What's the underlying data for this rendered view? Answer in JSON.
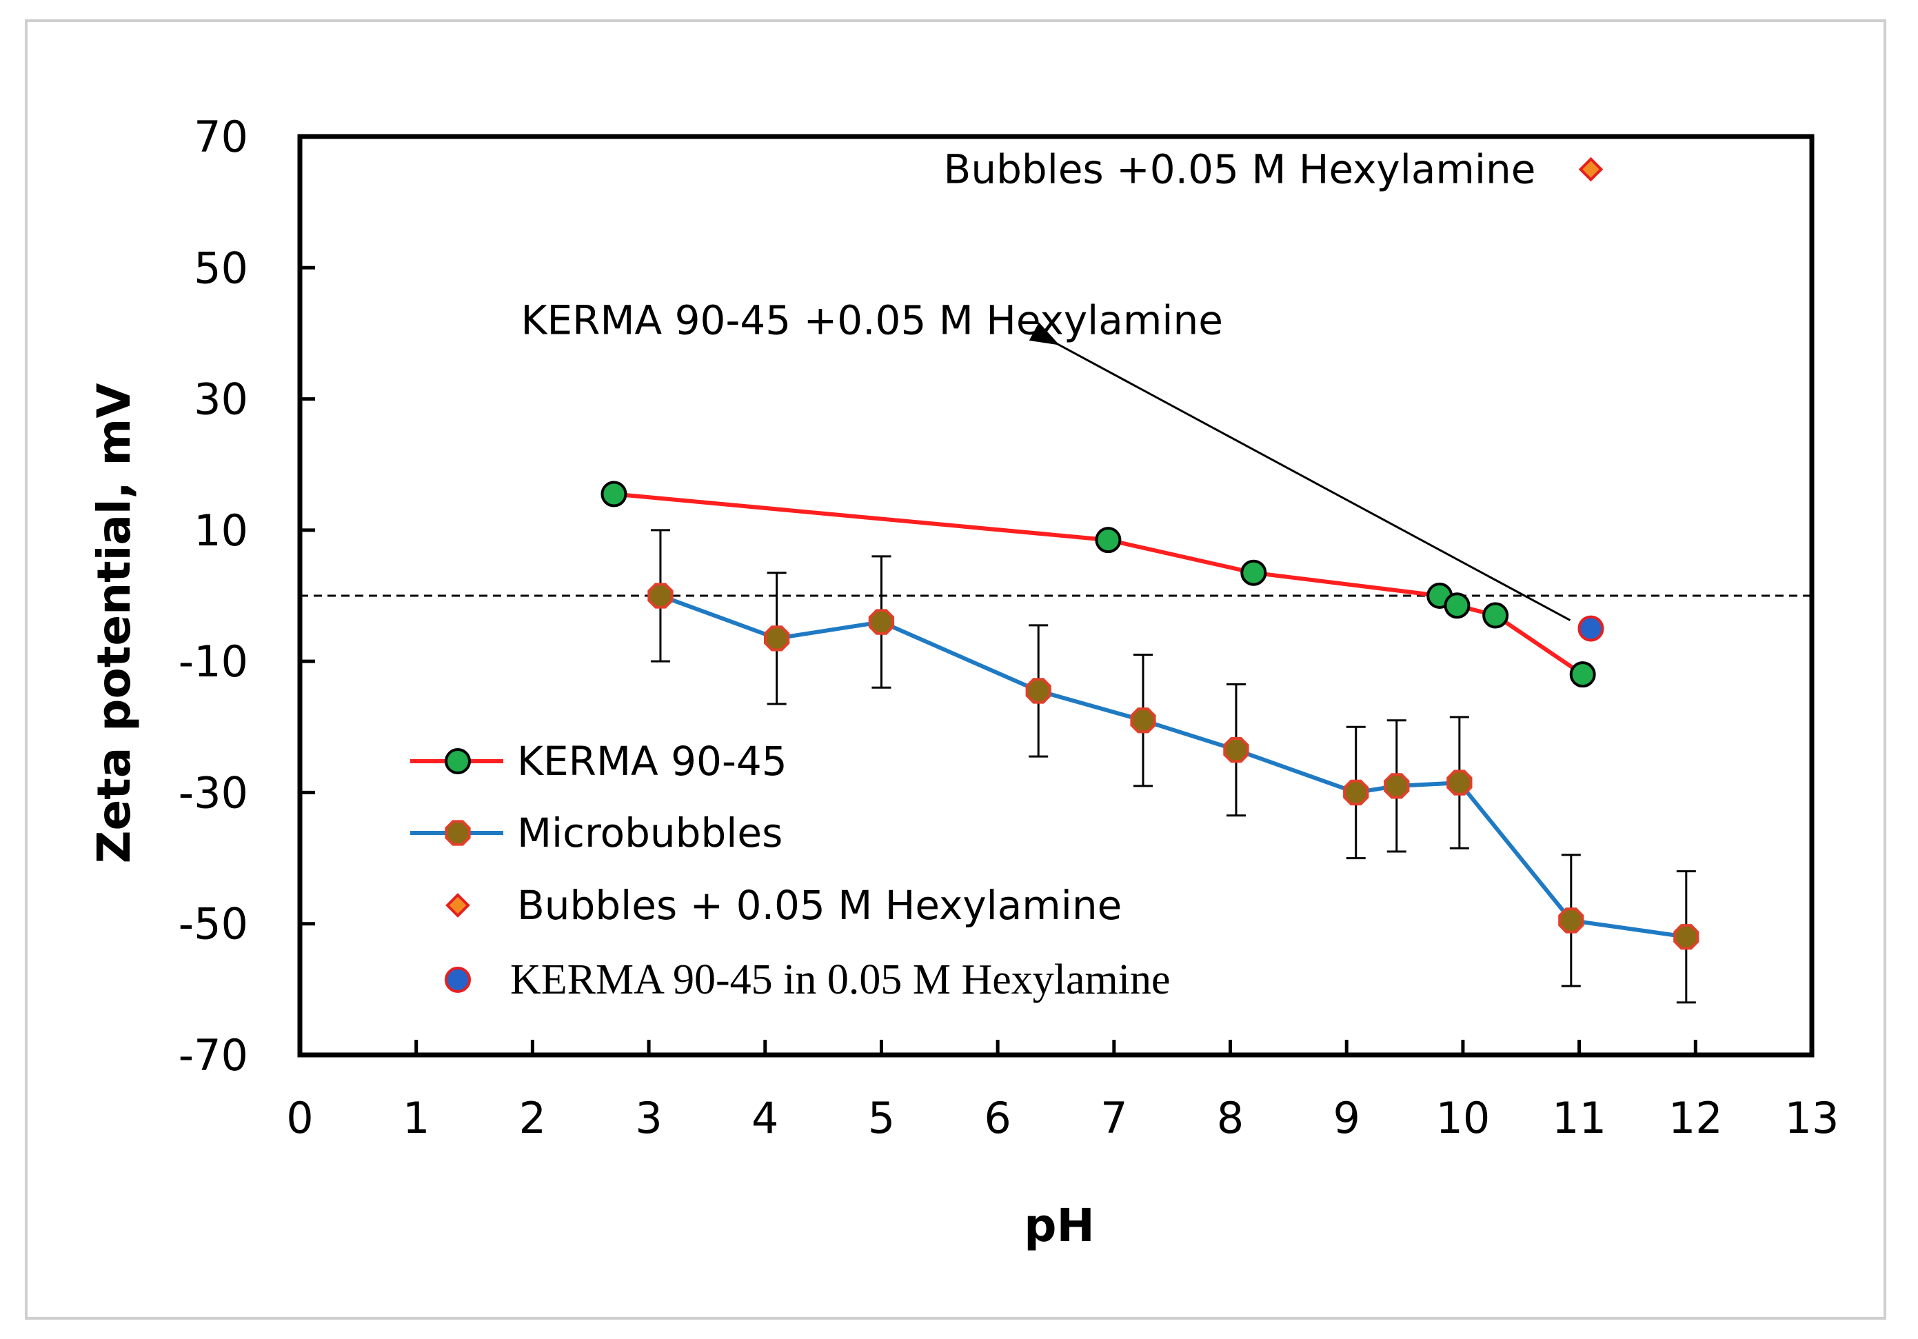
{
  "chart_data": {
    "type": "line",
    "title": "",
    "xlabel": "pH",
    "ylabel": "Zeta potential, mV",
    "xlim": [
      0,
      13
    ],
    "ylim": [
      -70,
      70
    ],
    "x_ticks": [
      "0",
      "1",
      "2",
      "3",
      "4",
      "5",
      "6",
      "7",
      "8",
      "9",
      "10",
      "11",
      "12",
      "13"
    ],
    "y_ticks": [
      "70",
      "50",
      "30",
      "10",
      "-10",
      "-30",
      "-50",
      "-70"
    ],
    "x_tick_values": [
      0,
      1,
      2,
      3,
      4,
      5,
      6,
      7,
      8,
      9,
      10,
      11,
      12,
      13
    ],
    "y_tick_values": [
      70,
      50,
      30,
      10,
      -10,
      -30,
      -50,
      -70
    ],
    "zero_reference_line": 0,
    "grid": false,
    "legend_position": "bottom-left",
    "series": [
      {
        "name": "KERMA 90-45",
        "line_color": "#ff1f1f",
        "marker": "circle",
        "marker_fill": "#1fae4b",
        "x": [
          2.7,
          6.95,
          8.2,
          9.8,
          9.95,
          10.28,
          11.03
        ],
        "y": [
          15.5,
          8.5,
          3.5,
          0,
          -1.5,
          -3,
          -12
        ]
      },
      {
        "name": "Microbubbles",
        "line_color": "#1f7ac4",
        "marker": "octagon",
        "marker_fill": "#8a6a14",
        "marker_edge": "#e0402a",
        "x": [
          3.1,
          4.1,
          5.0,
          6.35,
          7.25,
          8.05,
          9.08,
          9.43,
          9.97,
          10.93,
          11.92
        ],
        "y": [
          0,
          -6.5,
          -4,
          -14.5,
          -19,
          -23.5,
          -30,
          -29,
          -28.5,
          -49.5,
          -52
        ],
        "error": [
          10,
          10,
          10,
          10,
          10,
          10,
          10,
          10,
          10,
          10,
          10
        ]
      },
      {
        "name": "Bubbles + 0.05 M Hexylamine",
        "marker": "diamond",
        "marker_fill": "#f28a21",
        "marker_edge": "#e61f1f",
        "x": [],
        "y": []
      },
      {
        "name": "KERMA 90-45 in 0.05 M Hexylamine",
        "marker": "circle",
        "marker_fill": "#2563c9",
        "marker_edge": "#e61f1f",
        "x": [
          11.1
        ],
        "y": [
          -5
        ]
      }
    ],
    "annotations": [
      {
        "text": "Bubbles +0.05 M Hexylamine",
        "marker": "diamond",
        "x": 11.1,
        "y": 65
      },
      {
        "text": "KERMA 90-45 +0.05 M Hexylamine",
        "arrow_from": [
          11.1,
          -5
        ],
        "arrow_to": [
          6.5,
          38.5
        ],
        "x": 1.9,
        "y": 42
      }
    ]
  }
}
